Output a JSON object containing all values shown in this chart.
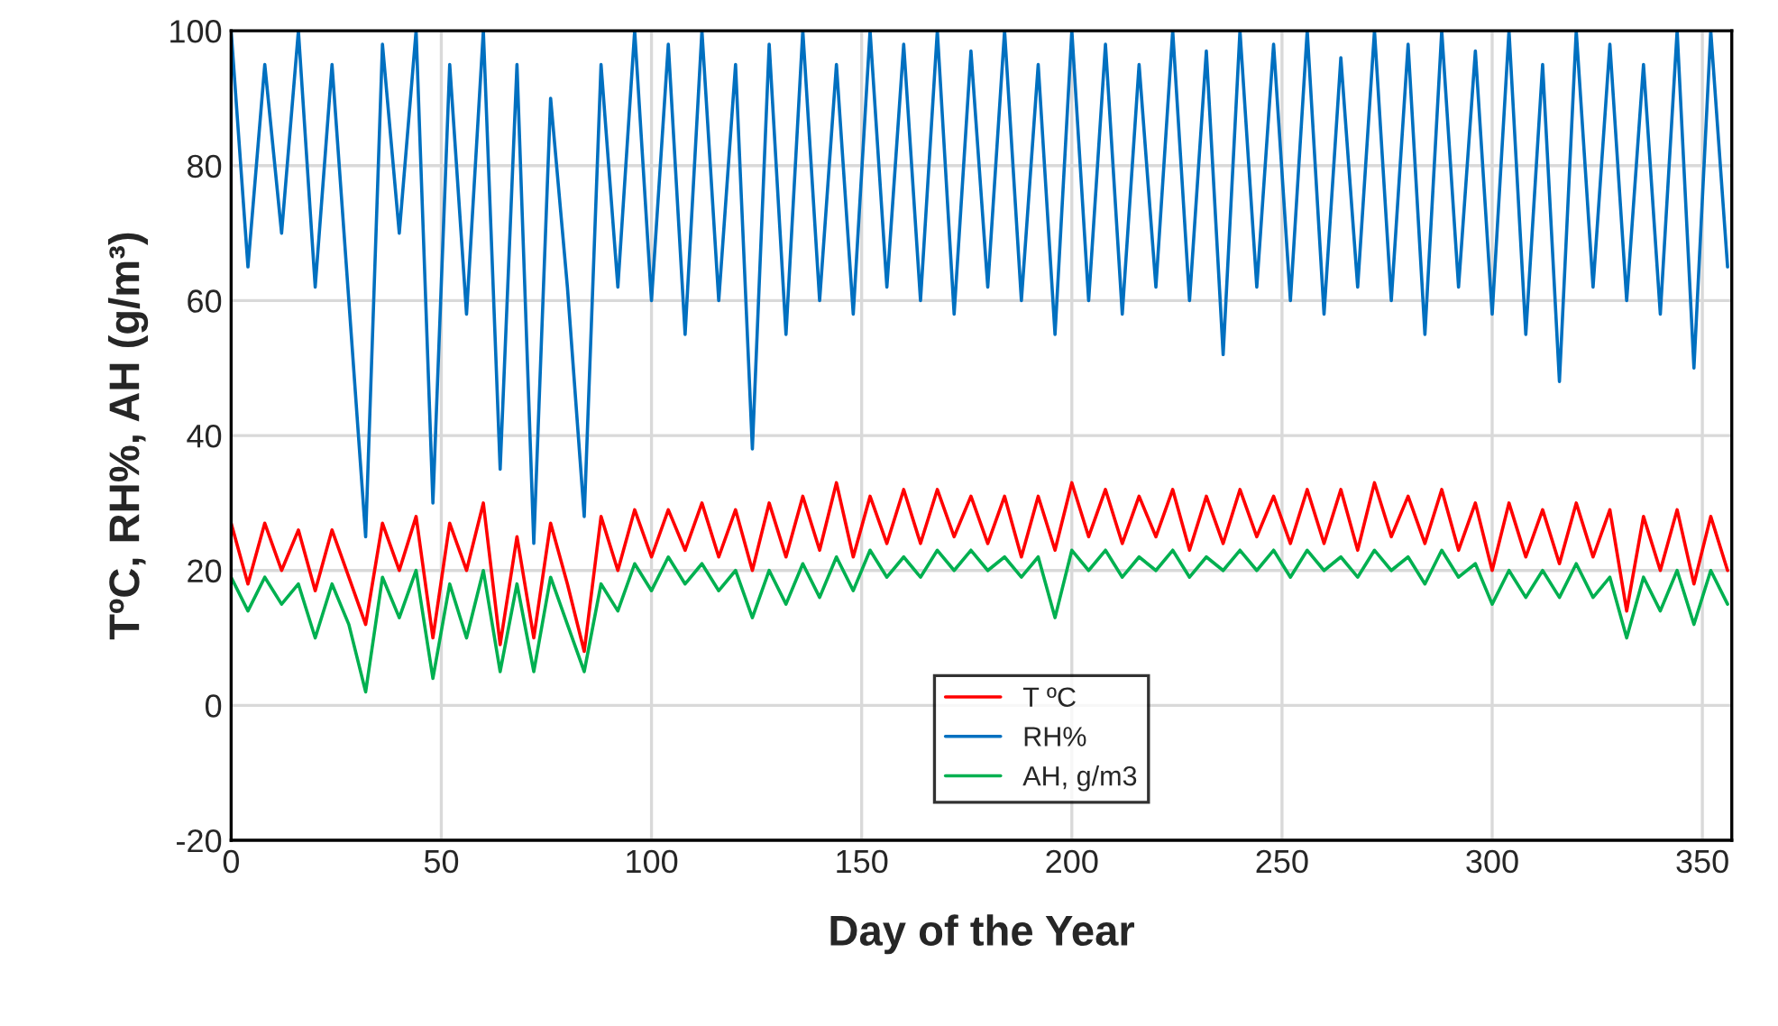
{
  "chart_data": {
    "type": "line",
    "xlabel": "Day of the Year",
    "ylabel": "TºC, RH%, AH (g/m³)",
    "x": [
      0,
      4,
      8,
      12,
      16,
      20,
      24,
      28,
      32,
      36,
      40,
      44,
      48,
      52,
      56,
      60,
      64,
      68,
      72,
      76,
      80,
      84,
      88,
      92,
      96,
      100,
      104,
      108,
      112,
      116,
      120,
      124,
      128,
      132,
      136,
      140,
      144,
      148,
      152,
      156,
      160,
      164,
      168,
      172,
      176,
      180,
      184,
      188,
      192,
      196,
      200,
      204,
      208,
      212,
      216,
      220,
      224,
      228,
      232,
      236,
      240,
      244,
      248,
      252,
      256,
      260,
      264,
      268,
      272,
      276,
      280,
      284,
      288,
      292,
      296,
      300,
      304,
      308,
      312,
      316,
      320,
      324,
      328,
      332,
      336,
      340,
      344,
      348,
      352,
      356
    ],
    "series": [
      {
        "name": "T ºC",
        "color": "#ff0000",
        "values": [
          27,
          18,
          27,
          20,
          26,
          17,
          26,
          19,
          12,
          27,
          20,
          28,
          10,
          27,
          20,
          30,
          9,
          25,
          10,
          27,
          18,
          8,
          28,
          20,
          29,
          22,
          29,
          23,
          30,
          22,
          29,
          20,
          30,
          22,
          31,
          23,
          33,
          22,
          31,
          24,
          32,
          24,
          32,
          25,
          31,
          24,
          31,
          22,
          31,
          23,
          33,
          25,
          32,
          24,
          31,
          25,
          32,
          23,
          31,
          24,
          32,
          25,
          31,
          24,
          32,
          24,
          32,
          23,
          33,
          25,
          31,
          24,
          32,
          23,
          30,
          20,
          30,
          22,
          29,
          21,
          30,
          22,
          29,
          14,
          28,
          20,
          29,
          18,
          28,
          20
        ]
      },
      {
        "name": "RH%",
        "color": "#0070c0",
        "values": [
          100,
          65,
          95,
          70,
          100,
          62,
          95,
          60,
          25,
          98,
          70,
          100,
          30,
          95,
          58,
          100,
          35,
          95,
          24,
          90,
          62,
          28,
          95,
          62,
          100,
          60,
          98,
          55,
          100,
          60,
          95,
          38,
          98,
          55,
          100,
          60,
          95,
          58,
          100,
          62,
          98,
          60,
          100,
          58,
          97,
          62,
          100,
          60,
          95,
          55,
          100,
          60,
          98,
          58,
          95,
          62,
          100,
          60,
          97,
          52,
          100,
          62,
          98,
          60,
          100,
          58,
          96,
          62,
          100,
          60,
          98,
          55,
          100,
          62,
          97,
          58,
          100,
          55,
          95,
          48,
          100,
          62,
          98,
          60,
          95,
          58,
          100,
          50,
          100,
          65
        ]
      },
      {
        "name": "AH, g/m3",
        "color": "#00b050",
        "values": [
          19,
          14,
          19,
          15,
          18,
          10,
          18,
          12,
          2,
          19,
          13,
          20,
          4,
          18,
          10,
          20,
          5,
          18,
          5,
          19,
          12,
          5,
          18,
          14,
          21,
          17,
          22,
          18,
          21,
          17,
          20,
          13,
          20,
          15,
          21,
          16,
          22,
          17,
          23,
          19,
          22,
          19,
          23,
          20,
          23,
          20,
          22,
          19,
          22,
          13,
          23,
          20,
          23,
          19,
          22,
          20,
          23,
          19,
          22,
          20,
          23,
          20,
          23,
          19,
          23,
          20,
          22,
          19,
          23,
          20,
          22,
          18,
          23,
          19,
          21,
          15,
          20,
          16,
          20,
          16,
          21,
          16,
          19,
          10,
          19,
          14,
          20,
          12,
          20,
          15
        ]
      }
    ],
    "xlim": [
      0,
      357
    ],
    "xticks": [
      0,
      50,
      100,
      150,
      200,
      250,
      300,
      350
    ],
    "ylim": [
      -20,
      100
    ],
    "yticks": [
      -20,
      0,
      20,
      40,
      60,
      80,
      100
    ],
    "grid": true,
    "legend": "bottom",
    "line_style": "solid",
    "marker": "none"
  }
}
